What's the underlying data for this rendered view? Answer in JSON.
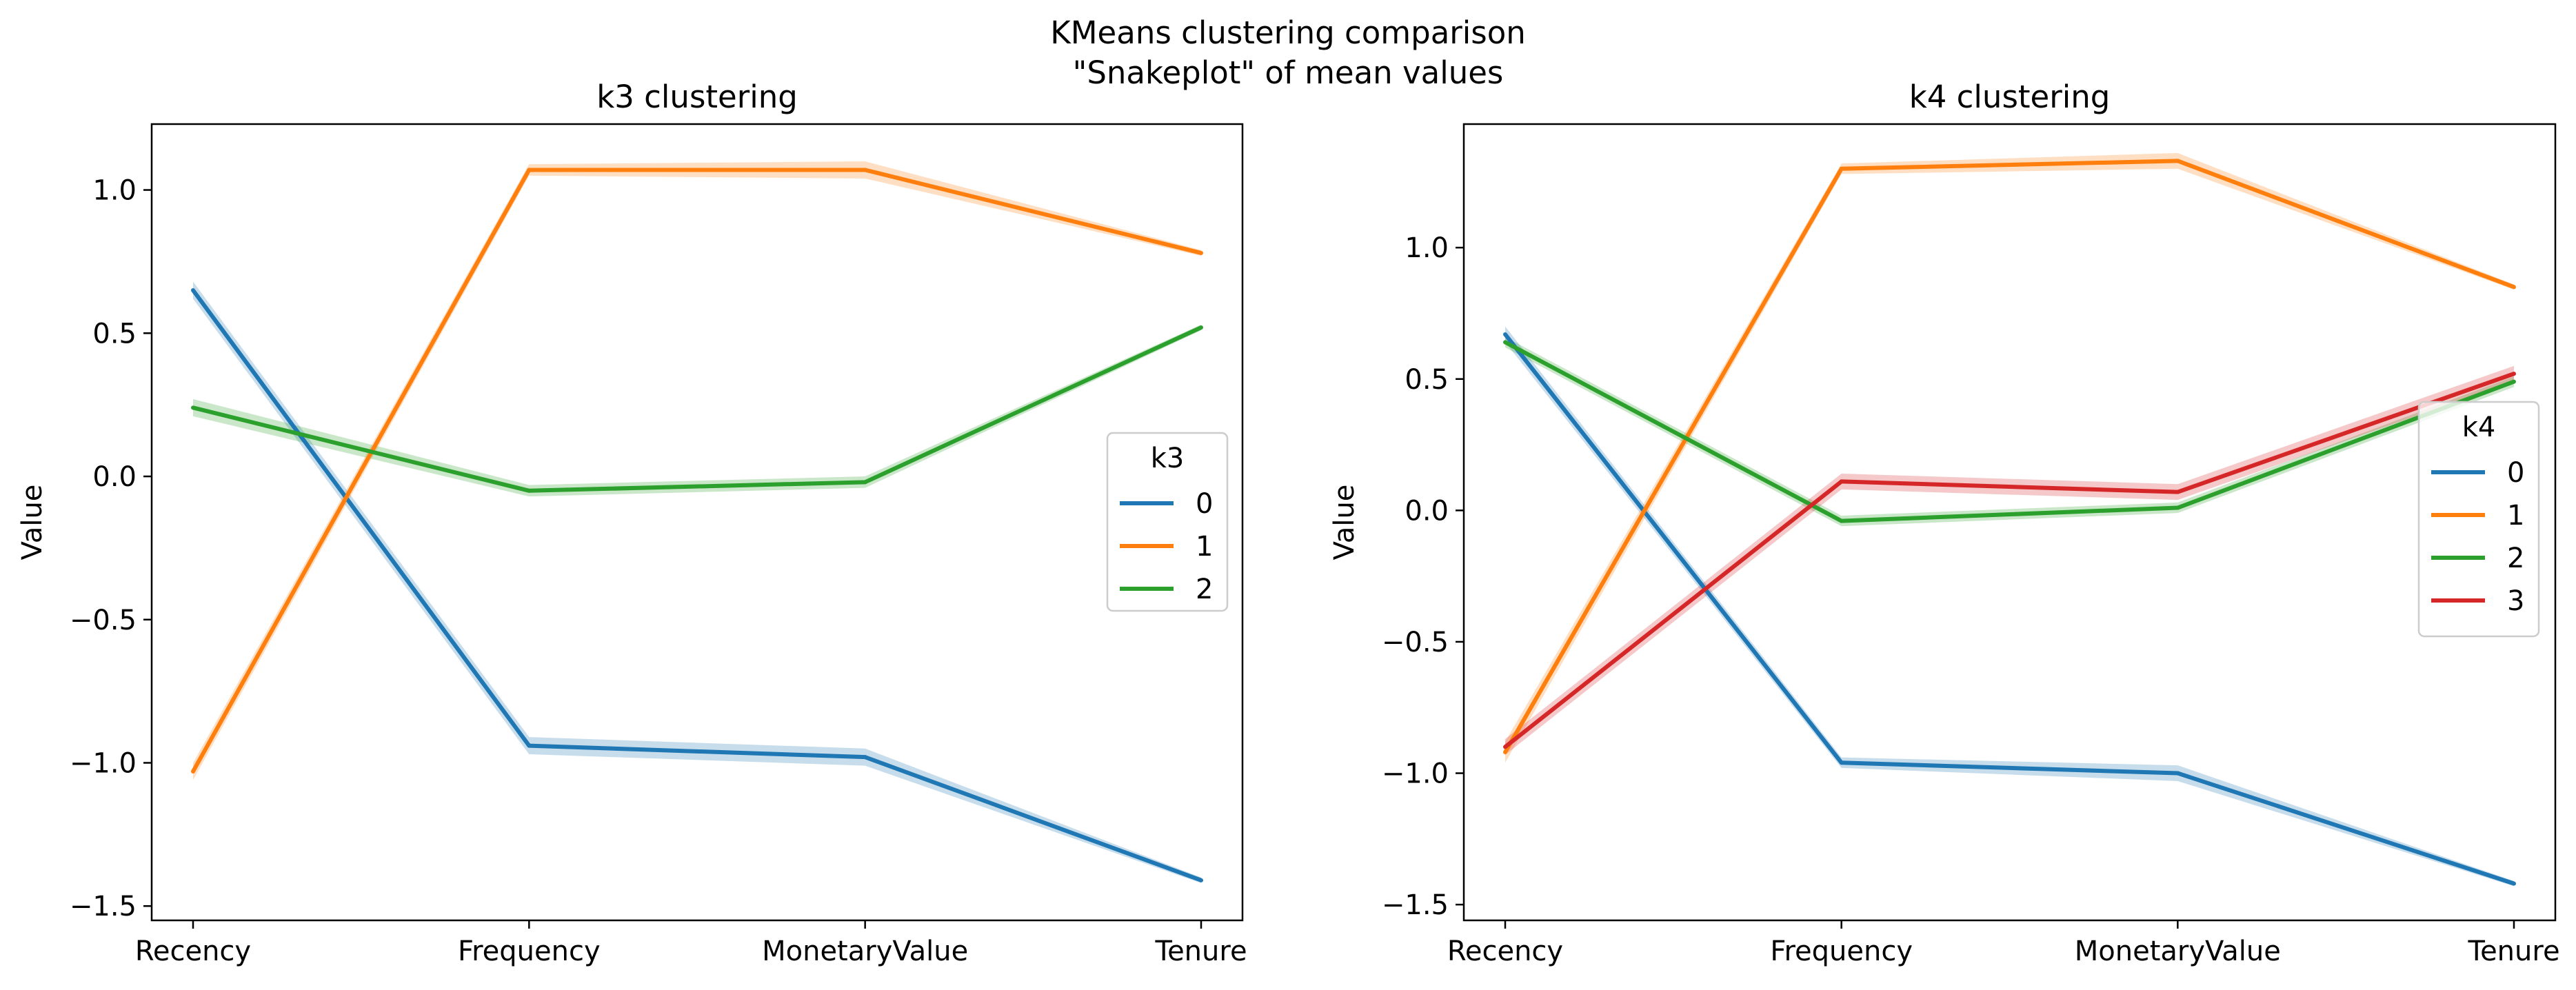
{
  "suptitle": [
    "KMeans clustering comparison",
    "\"Snakeplot\" of mean values"
  ],
  "chart_data": [
    {
      "type": "line",
      "title": "k3 clustering",
      "xlabel": "",
      "ylabel": "Value",
      "categories": [
        "Recency",
        "Frequency",
        "MonetaryValue",
        "Tenure"
      ],
      "ylim": [
        -1.55,
        1.23
      ],
      "yticks": [
        1.0,
        0.5,
        0.0,
        -0.5,
        -1.0,
        -1.5
      ],
      "ytick_labels": [
        "1.0",
        "0.5",
        "0.0",
        "−0.5",
        "−1.0",
        "−1.5"
      ],
      "grid": false,
      "legend": {
        "title": "k3",
        "position": "center-right"
      },
      "series": [
        {
          "name": "0",
          "color": "#1f77b4",
          "values": [
            0.65,
            -0.94,
            -0.98,
            -1.41
          ],
          "ci": [
            0.03,
            0.03,
            0.03,
            0.01
          ]
        },
        {
          "name": "1",
          "color": "#ff7f0e",
          "values": [
            -1.03,
            1.07,
            1.07,
            0.78
          ],
          "ci": [
            0.03,
            0.02,
            0.03,
            0.01
          ]
        },
        {
          "name": "2",
          "color": "#2ca02c",
          "values": [
            0.24,
            -0.05,
            -0.02,
            0.52
          ],
          "ci": [
            0.03,
            0.02,
            0.02,
            0.01
          ]
        }
      ]
    },
    {
      "type": "line",
      "title": "k4 clustering",
      "xlabel": "",
      "ylabel": "Value",
      "categories": [
        "Recency",
        "Frequency",
        "MonetaryValue",
        "Tenure"
      ],
      "ylim": [
        -1.56,
        1.47
      ],
      "yticks": [
        1.0,
        0.5,
        0.0,
        -0.5,
        -1.0,
        -1.5
      ],
      "ytick_labels": [
        "1.0",
        "0.5",
        "0.0",
        "−0.5",
        "−1.0",
        "−1.5"
      ],
      "grid": false,
      "legend": {
        "title": "k4",
        "position": "center-right"
      },
      "series": [
        {
          "name": "0",
          "color": "#1f77b4",
          "values": [
            0.67,
            -0.96,
            -1.0,
            -1.42
          ],
          "ci": [
            0.03,
            0.02,
            0.03,
            0.01
          ]
        },
        {
          "name": "1",
          "color": "#ff7f0e",
          "values": [
            -0.92,
            1.3,
            1.33,
            0.85
          ],
          "ci": [
            0.04,
            0.02,
            0.03,
            0.01
          ]
        },
        {
          "name": "2",
          "color": "#2ca02c",
          "values": [
            0.64,
            -0.04,
            0.01,
            0.49
          ],
          "ci": [
            0.02,
            0.02,
            0.02,
            0.02
          ]
        },
        {
          "name": "3",
          "color": "#d62728",
          "values": [
            -0.9,
            0.11,
            0.07,
            0.52
          ],
          "ci": [
            0.03,
            0.03,
            0.03,
            0.03
          ]
        }
      ]
    }
  ]
}
